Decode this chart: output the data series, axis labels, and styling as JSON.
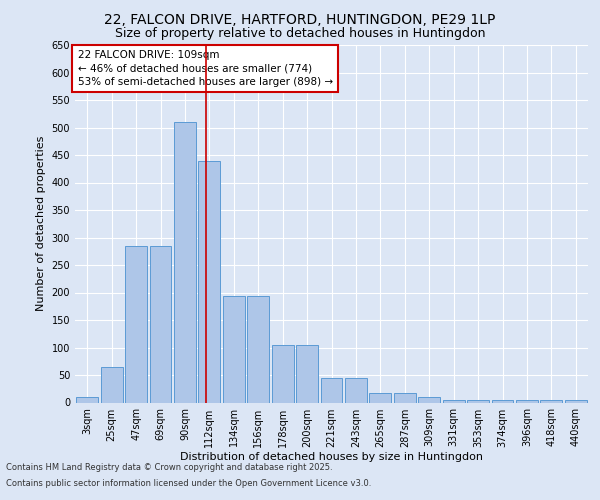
{
  "title1": "22, FALCON DRIVE, HARTFORD, HUNTINGDON, PE29 1LP",
  "title2": "Size of property relative to detached houses in Huntingdon",
  "xlabel": "Distribution of detached houses by size in Huntingdon",
  "ylabel": "Number of detached properties",
  "categories": [
    "3sqm",
    "25sqm",
    "47sqm",
    "69sqm",
    "90sqm",
    "112sqm",
    "134sqm",
    "156sqm",
    "178sqm",
    "200sqm",
    "221sqm",
    "243sqm",
    "265sqm",
    "287sqm",
    "309sqm",
    "331sqm",
    "353sqm",
    "374sqm",
    "396sqm",
    "418sqm",
    "440sqm"
  ],
  "values": [
    10,
    65,
    285,
    285,
    510,
    440,
    193,
    193,
    105,
    105,
    45,
    45,
    18,
    18,
    10,
    5,
    5,
    5,
    5,
    5,
    5
  ],
  "bar_color": "#aec6e8",
  "bar_edge_color": "#5b9bd5",
  "vline_color": "#cc0000",
  "vline_pos": 4.85,
  "annotation_text": "22 FALCON DRIVE: 109sqm\n← 46% of detached houses are smaller (774)\n53% of semi-detached houses are larger (898) →",
  "annotation_box_color": "#ffffff",
  "annotation_box_edge": "#cc0000",
  "background_color": "#dce6f5",
  "plot_bg_color": "#dce6f5",
  "grid_color": "#ffffff",
  "ylim": [
    0,
    650
  ],
  "yticks": [
    0,
    50,
    100,
    150,
    200,
    250,
    300,
    350,
    400,
    450,
    500,
    550,
    600,
    650
  ],
  "footer1": "Contains HM Land Registry data © Crown copyright and database right 2025.",
  "footer2": "Contains public sector information licensed under the Open Government Licence v3.0.",
  "title_fontsize": 10,
  "subtitle_fontsize": 9,
  "axis_label_fontsize": 8,
  "tick_fontsize": 7,
  "annotation_fontsize": 7.5,
  "footer_fontsize": 6
}
